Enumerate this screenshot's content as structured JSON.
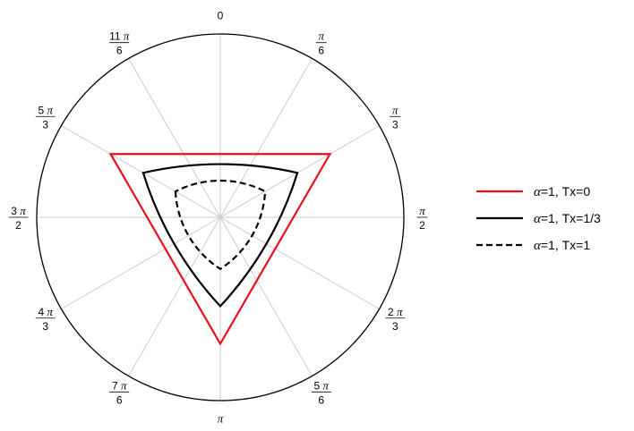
{
  "chart_data": {
    "type": "polar",
    "angle_ticks": [
      {
        "num": "",
        "sym": "0",
        "den": ""
      },
      {
        "num": "11",
        "sym": "π",
        "den": "6"
      },
      {
        "num": "5",
        "sym": "π",
        "den": "3"
      },
      {
        "num": "3",
        "sym": "π",
        "den": "2"
      },
      {
        "num": "4",
        "sym": "π",
        "den": "3"
      },
      {
        "num": "7",
        "sym": "π",
        "den": "6"
      },
      {
        "num": "",
        "sym": "π",
        "den": ""
      },
      {
        "num": "5",
        "sym": "π",
        "den": "6"
      },
      {
        "num": "2",
        "sym": "π",
        "den": "3"
      },
      {
        "num": "",
        "sym": "π",
        "den": "2"
      },
      {
        "num": "",
        "sym": "π",
        "den": "3"
      },
      {
        "num": "",
        "sym": "π",
        "den": "6"
      }
    ],
    "rlim": [
      0,
      1
    ],
    "grid": true,
    "legend_position": "right",
    "series": [
      {
        "name_alpha": "α",
        "name_rest": "=1, Tx=0",
        "color": "#e8101a",
        "dash": "solid",
        "shape": "triangle",
        "apex_r": 0.69,
        "edge_r": 0.345
      },
      {
        "name_alpha": "α",
        "name_rest": "=1, Tx=1/3",
        "color": "#000000",
        "dash": "solid",
        "shape": "reuleaux",
        "apex_r": 0.485,
        "edge_r": 0.29
      },
      {
        "name_alpha": "α",
        "name_rest": "=1, Tx=1",
        "color": "#000000",
        "dash": "dashed",
        "shape": "reuleaux",
        "apex_r": 0.282,
        "edge_r": 0.2
      }
    ]
  }
}
